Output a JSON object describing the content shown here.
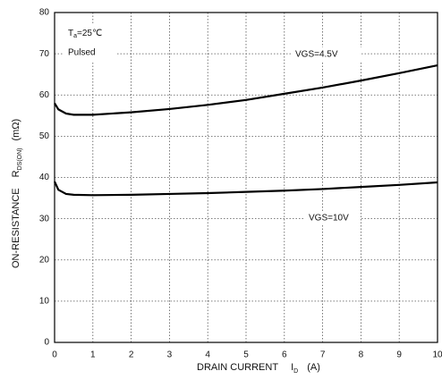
{
  "chart_data": {
    "type": "line",
    "ylabel": {
      "main": "ON-RESISTANCE",
      "symbol": "R",
      "subscript": "DS(ON)",
      "unit": "(mΩ)"
    },
    "xlabel": {
      "main": "DRAIN CURRENT",
      "symbol": "I",
      "subscript": "D",
      "unit": "(A)"
    },
    "annotations": {
      "temp_symbol": "T",
      "temp_subscript": "a",
      "temp_value": "=25℃",
      "mode": "Pulsed"
    },
    "x": [
      0,
      0.1,
      0.3,
      0.5,
      1,
      2,
      3,
      4,
      5,
      6,
      7,
      8,
      9,
      10
    ],
    "series": [
      {
        "name": "VGS=4.5V",
        "color": "#000000",
        "values": [
          58,
          56.5,
          55.5,
          55.2,
          55.2,
          55.8,
          56.6,
          57.6,
          58.8,
          60.3,
          61.8,
          63.5,
          65.3,
          67.2
        ]
      },
      {
        "name": "VGS=10V",
        "color": "#000000",
        "values": [
          39,
          37,
          36,
          35.8,
          35.7,
          35.8,
          36,
          36.2,
          36.5,
          36.8,
          37.2,
          37.7,
          38.2,
          38.8
        ]
      }
    ],
    "xlim": [
      0,
      10
    ],
    "xticks": [
      0,
      1,
      2,
      3,
      4,
      5,
      6,
      7,
      8,
      9,
      10
    ],
    "ylim": [
      0,
      80
    ],
    "yticks": [
      0,
      10,
      20,
      30,
      40,
      50,
      60,
      70,
      80
    ],
    "grid": true
  }
}
